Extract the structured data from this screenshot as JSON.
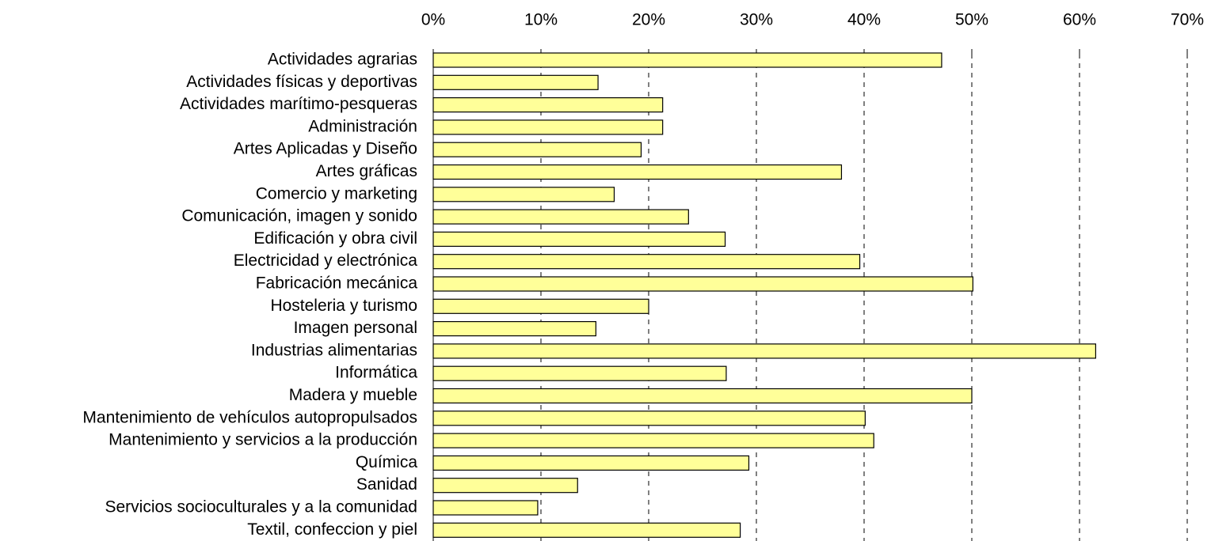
{
  "chart_data": {
    "type": "bar",
    "orientation": "horizontal",
    "categories": [
      "Actividades agrarias",
      "Actividades físicas y deportivas",
      "Actividades marítimo-pesqueras",
      "Administración",
      "Artes Aplicadas y Diseño",
      "Artes gráficas",
      "Comercio y marketing",
      "Comunicación, imagen y sonido",
      "Edificación y obra civil",
      "Electricidad y electrónica",
      "Fabricación mecánica",
      "Hosteleria y turismo",
      "Imagen personal",
      "Industrias alimentarias",
      "Informática",
      "Madera y mueble",
      "Mantenimiento de vehículos autopropulsados",
      "Mantenimiento y servicios a la producción",
      "Química",
      "Sanidad",
      "Servicios socioculturales y a la comunidad",
      "Textil, confeccion y piel"
    ],
    "values": [
      47.2,
      15.3,
      21.3,
      21.3,
      19.3,
      37.9,
      16.8,
      23.7,
      27.1,
      39.6,
      50.1,
      20.0,
      15.1,
      61.5,
      27.2,
      50.0,
      40.1,
      40.9,
      29.3,
      13.4,
      9.7,
      28.5
    ],
    "color": "#ffff99",
    "xlim": [
      0,
      70
    ],
    "xticks": [
      {
        "value": 0,
        "label": "0%"
      },
      {
        "value": 10,
        "label": "10%"
      },
      {
        "value": 20,
        "label": "20%"
      },
      {
        "value": 30,
        "label": "30%"
      },
      {
        "value": 40,
        "label": "40%"
      },
      {
        "value": 50,
        "label": "50%"
      },
      {
        "value": 60,
        "label": "60%"
      },
      {
        "value": 70,
        "label": "70%"
      }
    ],
    "grid": true
  }
}
